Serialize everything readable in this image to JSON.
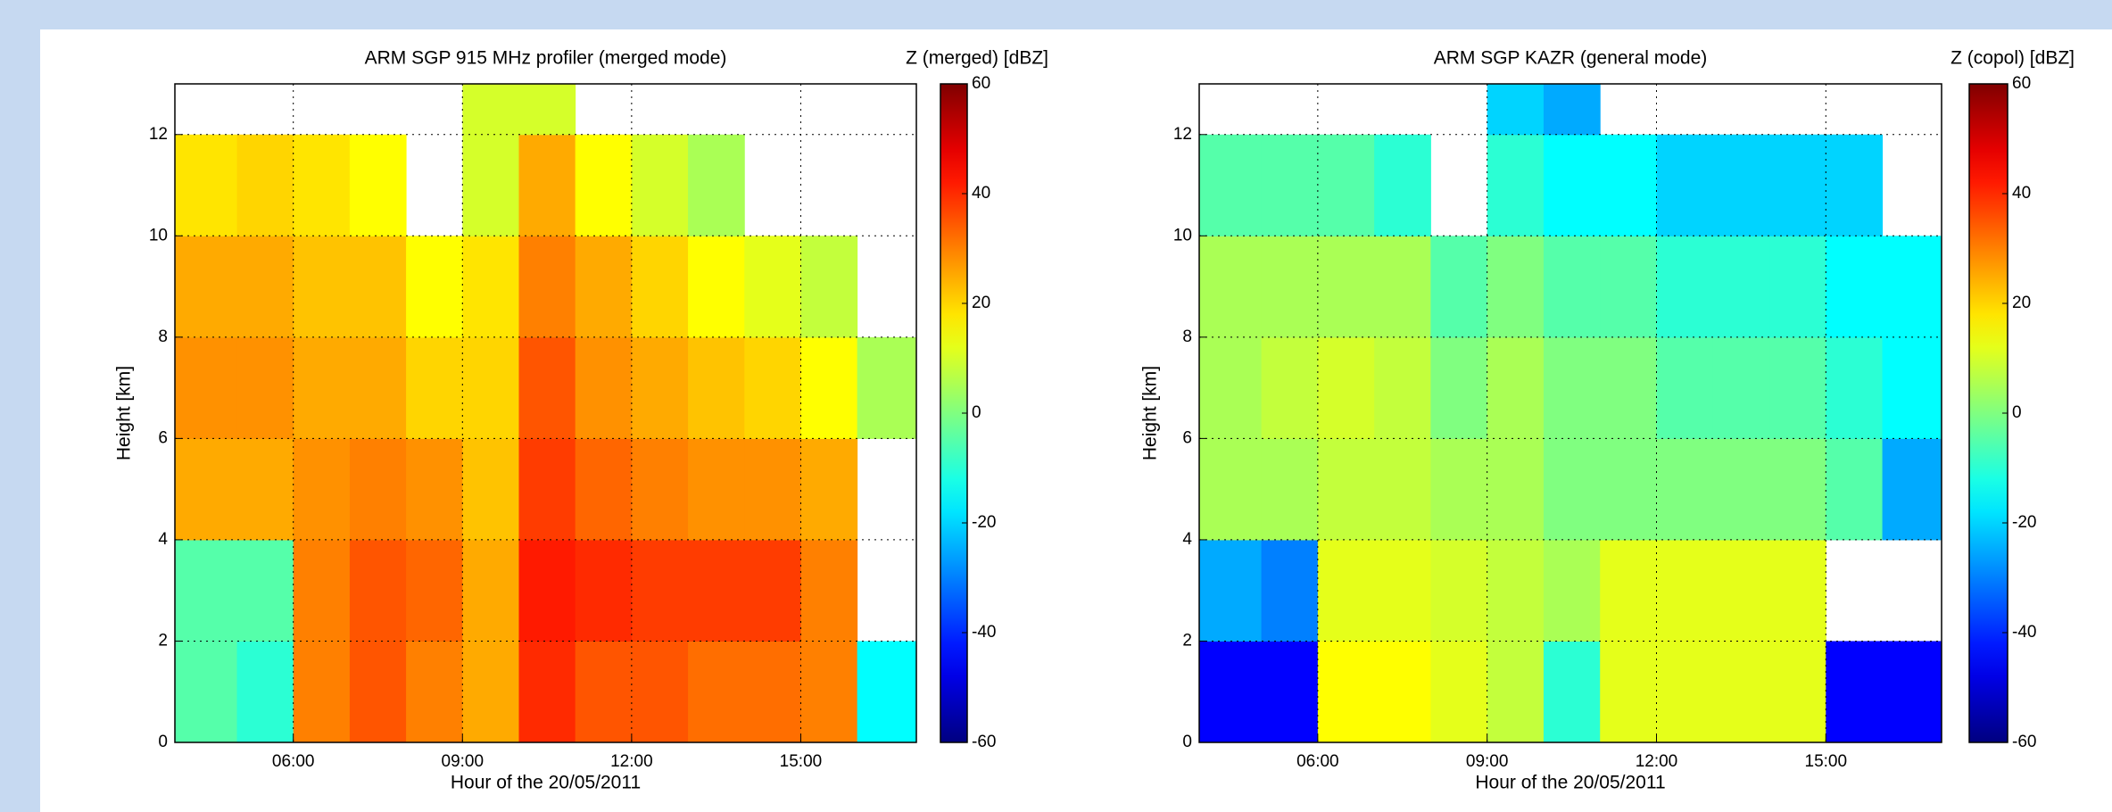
{
  "chart_data": [
    {
      "type": "heatmap",
      "title": "ARM SGP 915 MHz profiler (merged mode)",
      "colorbar_label": "Z (merged) [dBZ]",
      "xlabel": "Hour of the 20/05/2011",
      "ylabel": "Height [km]",
      "xlim": [
        3.9,
        17.05
      ],
      "ylim": [
        0,
        13
      ],
      "xticks": [
        {
          "value": 6,
          "label": "06:00"
        },
        {
          "value": 9,
          "label": "09:00"
        },
        {
          "value": 12,
          "label": "12:00"
        },
        {
          "value": 15,
          "label": "15:00"
        }
      ],
      "yticks": [
        0,
        2,
        4,
        6,
        8,
        10,
        12
      ],
      "clim": [
        -60,
        60
      ],
      "cticks": [
        -60,
        -40,
        -20,
        0,
        20,
        40,
        60
      ],
      "colormap": "jet",
      "grid": true,
      "x_bins": [
        3.9,
        5,
        6,
        7,
        8,
        9,
        10,
        11,
        12,
        13,
        14,
        15,
        16,
        17.05
      ],
      "y_bins": [
        0,
        2,
        4,
        6,
        8,
        10,
        12,
        13
      ],
      "values": [
        [
          -5,
          -10,
          30,
          35,
          30,
          25,
          40,
          35,
          35,
          32,
          32,
          30,
          -15
        ],
        [
          -5,
          -5,
          30,
          35,
          33,
          25,
          42,
          40,
          38,
          38,
          38,
          30,
          null
        ],
        [
          25,
          25,
          28,
          30,
          28,
          22,
          38,
          33,
          30,
          28,
          28,
          25,
          null
        ],
        [
          28,
          28,
          25,
          25,
          20,
          20,
          35,
          28,
          25,
          22,
          20,
          15,
          5
        ],
        [
          25,
          25,
          22,
          22,
          15,
          18,
          30,
          25,
          20,
          15,
          12,
          8,
          null
        ],
        [
          18,
          20,
          18,
          15,
          null,
          10,
          25,
          15,
          10,
          5,
          null,
          null,
          null
        ],
        [
          null,
          null,
          null,
          null,
          null,
          10,
          10,
          null,
          null,
          null,
          null,
          null,
          null
        ]
      ]
    },
    {
      "type": "heatmap",
      "title": "ARM SGP KAZR (general mode)",
      "colorbar_label": "Z (copol) [dBZ]",
      "xlabel": "Hour of the 20/05/2011",
      "ylabel": "Height [km]",
      "xlim": [
        3.9,
        17.05
      ],
      "ylim": [
        0,
        13
      ],
      "xticks": [
        {
          "value": 6,
          "label": "06:00"
        },
        {
          "value": 9,
          "label": "09:00"
        },
        {
          "value": 12,
          "label": "12:00"
        },
        {
          "value": 15,
          "label": "15:00"
        }
      ],
      "yticks": [
        0,
        2,
        4,
        6,
        8,
        10,
        12
      ],
      "clim": [
        -60,
        60
      ],
      "cticks": [
        -60,
        -40,
        -20,
        0,
        20,
        40,
        60
      ],
      "colormap": "jet",
      "grid": true,
      "x_bins": [
        3.9,
        5,
        6,
        7,
        8,
        9,
        10,
        11,
        12,
        13,
        14,
        15,
        16,
        17.05
      ],
      "y_bins": [
        0,
        2,
        4,
        6,
        8,
        10,
        12,
        13
      ],
      "values": [
        [
          -45,
          -45,
          15,
          15,
          12,
          8,
          -10,
          12,
          12,
          12,
          12,
          -45,
          -45
        ],
        [
          -25,
          -30,
          12,
          12,
          10,
          8,
          5,
          12,
          12,
          12,
          12,
          null,
          null
        ],
        [
          5,
          5,
          8,
          8,
          5,
          5,
          0,
          0,
          0,
          0,
          0,
          -5,
          -25
        ],
        [
          5,
          8,
          10,
          8,
          0,
          5,
          0,
          0,
          -5,
          -5,
          -5,
          -10,
          -15
        ],
        [
          5,
          5,
          5,
          5,
          -5,
          0,
          -5,
          -5,
          -10,
          -10,
          -10,
          -15,
          -15
        ],
        [
          -5,
          -5,
          -5,
          -10,
          null,
          -10,
          -15,
          -15,
          -20,
          -20,
          -20,
          -20,
          null
        ],
        [
          null,
          null,
          null,
          null,
          null,
          -20,
          -25,
          null,
          null,
          null,
          null,
          null,
          null
        ]
      ]
    }
  ]
}
